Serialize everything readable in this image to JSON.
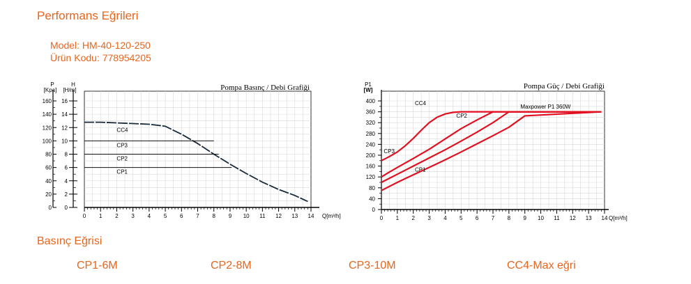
{
  "header": {
    "title": "Performans  Eğrileri",
    "model": "Model: HM-40-120-250",
    "product_code": "Ürün Kodu: 778954205"
  },
  "footer": {
    "section_title": "Basınç Eğrisi",
    "legend": [
      "CP1-6M",
      "CP2-8M",
      "CP3-10M",
      "CC4-Max eğri"
    ]
  },
  "colors": {
    "accent": "#e8651e",
    "grid": "#d8d8d8",
    "left_curve": "#1a2a3a",
    "right_curve": "#e01020"
  },
  "chart_data": [
    {
      "type": "line",
      "title": "Pompa Basınç / Debi Grafiği",
      "y_left_label": "P",
      "y_left_unit": "[Kpa]",
      "y_right_label": "H",
      "y_right_unit": "[H/m]",
      "xlabel": "Q[m³/h]",
      "xlim": [
        0,
        14
      ],
      "ylim": [
        0,
        16
      ],
      "x_ticks": [
        0,
        1,
        2,
        3,
        4,
        5,
        6,
        7,
        8,
        9,
        10,
        11,
        12,
        13,
        14
      ],
      "h_ticks": [
        0,
        2,
        4,
        6,
        8,
        10,
        12,
        14,
        16
      ],
      "p_ticks": [
        0,
        20,
        40,
        60,
        80,
        100,
        120,
        140,
        160
      ],
      "grid": true,
      "series": [
        {
          "name": "CC4",
          "x": [
            0,
            1,
            2,
            3,
            4,
            5,
            6,
            7,
            8,
            9,
            10,
            11,
            12,
            13,
            13.8
          ],
          "y": [
            12.8,
            12.8,
            12.7,
            12.6,
            12.5,
            12.2,
            11,
            9.6,
            8,
            6.5,
            5.1,
            3.8,
            2.7,
            1.8,
            0.9
          ]
        },
        {
          "name": "CP3",
          "x": [
            0,
            8
          ],
          "y": [
            10,
            10
          ]
        },
        {
          "name": "CP2",
          "x": [
            0,
            8.3
          ],
          "y": [
            8,
            8
          ]
        },
        {
          "name": "CP1",
          "x": [
            0,
            9.1
          ],
          "y": [
            6,
            6
          ]
        }
      ]
    },
    {
      "type": "line",
      "title": "Pompa Güç / Debi Grafiği",
      "y_label": "P1",
      "y_unit": "[W]",
      "xlabel": "Q[m³/h]",
      "xlim": [
        0,
        14
      ],
      "ylim": [
        0,
        400
      ],
      "x_ticks": [
        0,
        1,
        2,
        3,
        4,
        5,
        6,
        7,
        8,
        9,
        10,
        11,
        12,
        13,
        14
      ],
      "y_ticks": [
        0,
        40,
        80,
        120,
        160,
        200,
        240,
        280,
        320,
        360,
        400
      ],
      "grid": true,
      "annotation": "Maxpower P1  360W",
      "series": [
        {
          "name": "CC4",
          "x": [
            0,
            0.5,
            1,
            1.5,
            2,
            2.5,
            3,
            3.5,
            4,
            4.5,
            5,
            13.8
          ],
          "y": [
            180,
            195,
            212,
            235,
            262,
            292,
            320,
            340,
            352,
            358,
            360,
            360
          ]
        },
        {
          "name": "CP3",
          "x": [
            0,
            0.5,
            1,
            2,
            3,
            4,
            5,
            6,
            7,
            13.8
          ],
          "y": [
            120,
            138,
            155,
            188,
            222,
            260,
            298,
            330,
            360,
            360
          ]
        },
        {
          "name": "CP2",
          "x": [
            0,
            1,
            2,
            3,
            4,
            5,
            6,
            7,
            8,
            13.8
          ],
          "y": [
            100,
            130,
            160,
            190,
            220,
            252,
            285,
            320,
            360,
            360
          ]
        },
        {
          "name": "CP1",
          "x": [
            0,
            1,
            2,
            3,
            4,
            5,
            6,
            7,
            8,
            9,
            13.8
          ],
          "y": [
            70,
            100,
            128,
            155,
            183,
            212,
            242,
            272,
            303,
            345,
            360
          ]
        }
      ],
      "series_label_names": [
        "CC4",
        "CP3",
        "CP2",
        "CP1"
      ]
    }
  ]
}
